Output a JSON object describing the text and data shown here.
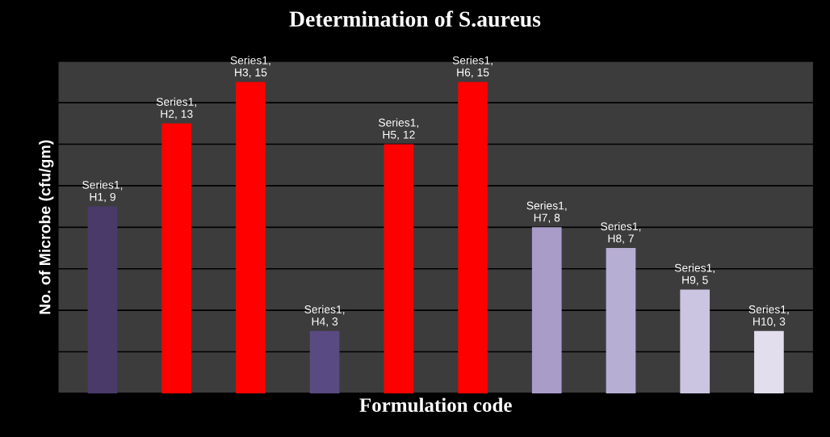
{
  "chart_data": {
    "type": "bar",
    "title": "Determination of S.aureus",
    "xlabel": "Formulation code",
    "ylabel": "No. of Microbe (cfu/gm)",
    "categories": [
      null,
      null,
      null,
      null,
      null,
      null,
      null,
      null,
      null,
      null
    ],
    "values": [
      9,
      13,
      15,
      3,
      12,
      15,
      8,
      7,
      5,
      3
    ],
    "colors": [
      "#4a3a6a",
      "#ff0000",
      "#ff0000",
      "#5a4a82",
      "#ff0000",
      "#ff0000",
      "#a99cc9",
      "#b7aed3",
      "#cbc5e1",
      "#e2deee"
    ],
    "value_labels": [
      "Series1, H1, 9",
      "Series1, H2, 13",
      "Series1, H3, 15",
      "Series1, H4, 3",
      "Series1, H5, 12",
      "Series1, H6, 15",
      "Series1, H7, 8",
      "Series1, H8, 7",
      "Series1, H9, 5",
      "Series1, H10, 3"
    ],
    "ylim": [
      0,
      16
    ],
    "yticks": [
      {
        "value": 0,
        "label": null
      },
      {
        "value": 2,
        "label": null
      },
      {
        "value": 4,
        "label": null
      },
      {
        "value": 6,
        "label": null
      },
      {
        "value": 8,
        "label": null
      },
      {
        "value": 10,
        "label": null
      },
      {
        "value": 12,
        "label": null
      },
      {
        "value": 14,
        "label": null
      },
      {
        "value": 16,
        "label": null
      }
    ],
    "grid": "y",
    "tick_labels": false
  }
}
